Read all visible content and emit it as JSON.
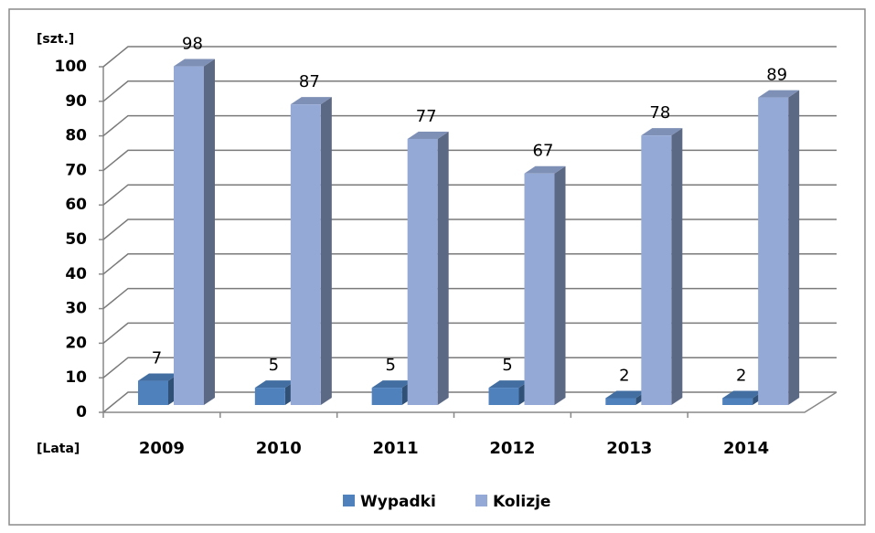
{
  "chart_data": {
    "type": "bar3d",
    "y_label": "[szt.]",
    "x_label": "[Lata]",
    "categories": [
      "2009",
      "2010",
      "2011",
      "2012",
      "2013",
      "2014"
    ],
    "series": [
      {
        "name": "Wypadki",
        "color": "#4f81bd",
        "values": [
          7,
          5,
          5,
          5,
          2,
          2
        ]
      },
      {
        "name": "Kolizje",
        "color": "#95a9d6",
        "values": [
          98,
          87,
          77,
          67,
          78,
          89
        ]
      }
    ],
    "ylim": [
      0,
      100
    ],
    "yticks": [
      0,
      10,
      20,
      30,
      40,
      50,
      60,
      70,
      80,
      90,
      100
    ],
    "grid": true,
    "legend": "bottom"
  }
}
